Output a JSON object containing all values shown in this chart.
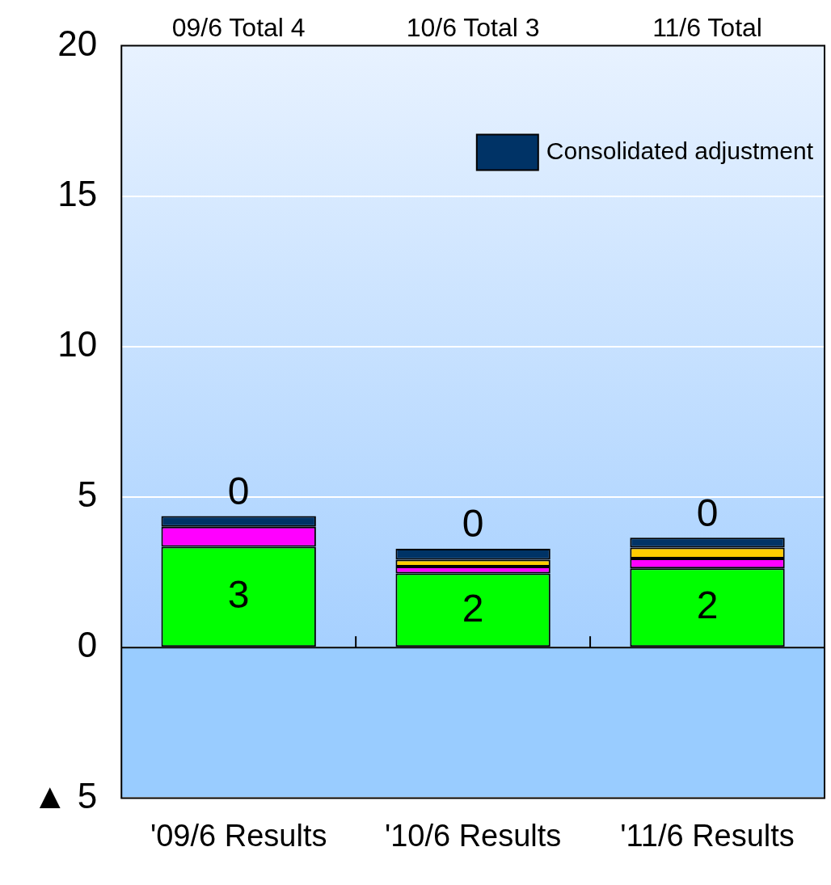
{
  "chart_data": {
    "type": "bar",
    "stacked": true,
    "categories": [
      "'09/6 Results",
      "'10/6 Results",
      "'11/6 Results"
    ],
    "series": [
      {
        "color": "#00ff00",
        "values": [
          3.35,
          2.46,
          2.63
        ]
      },
      {
        "color": "#ff00ff",
        "values": [
          0.66,
          0.23,
          0.33
        ]
      },
      {
        "color": "#ffcc00",
        "values": [
          0,
          0.23,
          0.36
        ]
      },
      {
        "name": "Consolidated adjustment",
        "color": "#003366",
        "values": [
          0.36,
          0.36,
          0.33
        ]
      }
    ],
    "annotations": [
      "09/6 Total 4",
      "10/6 Total 3",
      "11/6 Total",
      "3",
      "2",
      "2",
      "0",
      "0",
      "0"
    ],
    "ylim": [
      -5,
      20
    ],
    "yticks": [
      {
        "value": -5,
        "label": "▲ 5"
      },
      0,
      5,
      10,
      15,
      20
    ],
    "grid": "y",
    "legend": "top right"
  }
}
